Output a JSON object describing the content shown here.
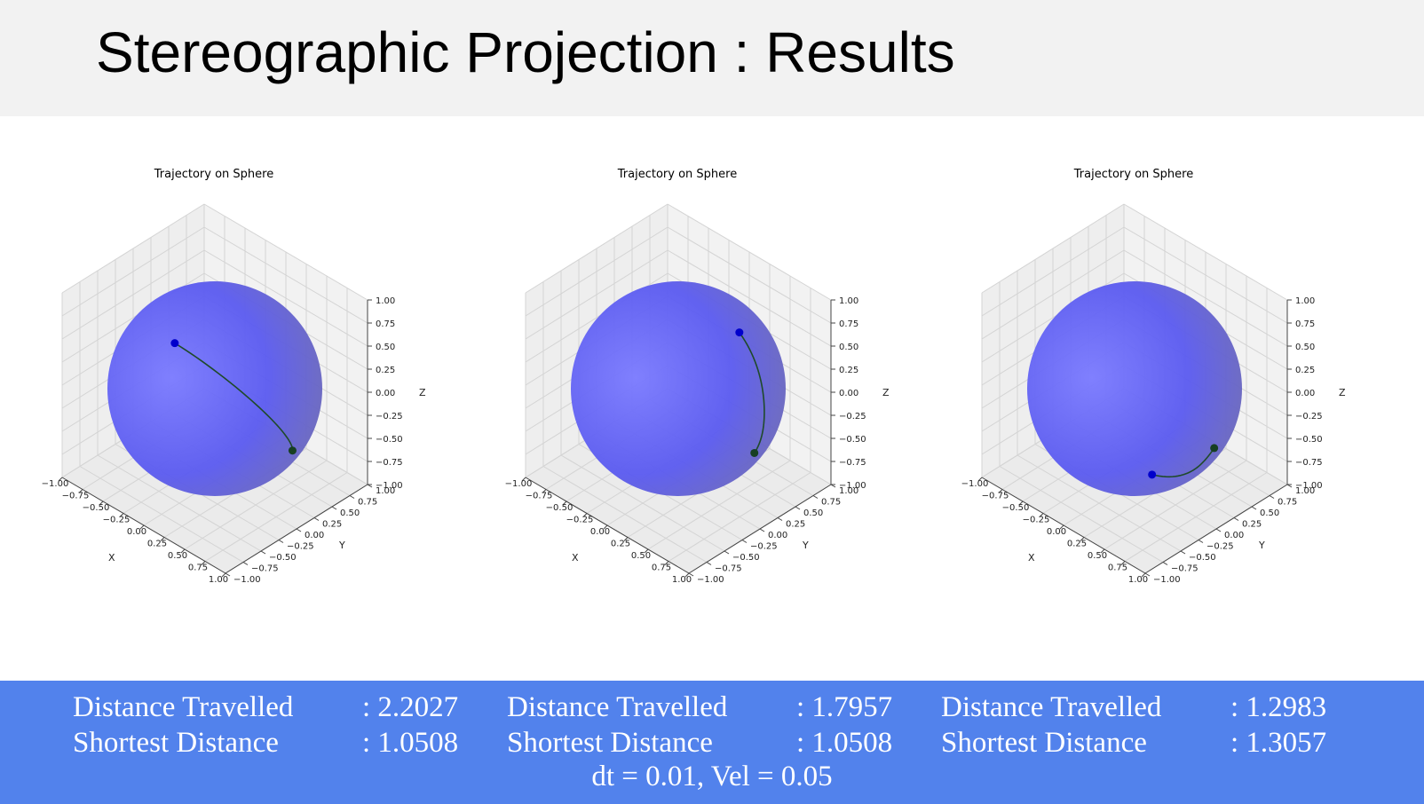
{
  "slide": {
    "title": "Stereographic Projection : Results"
  },
  "chart_data": [
    {
      "type": "scatter",
      "title": "Trajectory on Sphere",
      "xlabel": "X",
      "ylabel": "Y",
      "zlabel": "Z",
      "xlim": [
        -1,
        1
      ],
      "ylim": [
        -1,
        1
      ],
      "zlim": [
        -1,
        1
      ],
      "tick_labels": [
        "−1.00",
        "−0.75",
        "−0.50",
        "−0.25",
        "0.00",
        "0.25",
        "0.50",
        "0.75",
        "1.00"
      ],
      "grid": true,
      "sphere_color": "#5a5af0",
      "path_color": "#1f4a2a",
      "series": [
        {
          "values": [
            [
              -0.05,
              -0.55,
              0.77
            ],
            [
              0.95,
              0.25,
              -0.45
            ]
          ]
        }
      ]
    },
    {
      "type": "scatter",
      "title": "Trajectory on Sphere",
      "xlabel": "X",
      "ylabel": "Y",
      "zlabel": "Z",
      "xlim": [
        -1,
        1
      ],
      "ylim": [
        -1,
        1
      ],
      "zlim": [
        -1,
        1
      ],
      "tick_labels": [
        "−1.00",
        "−0.75",
        "−0.50",
        "−0.25",
        "0.00",
        "0.25",
        "0.50",
        "0.75",
        "1.00"
      ],
      "grid": true,
      "sphere_color": "#5a5af0",
      "path_color": "#1f4a2a",
      "series": [
        {
          "values": [
            [
              0.45,
              0.35,
              0.68
            ],
            [
              0.95,
              0.25,
              -0.5
            ]
          ]
        }
      ]
    },
    {
      "type": "scatter",
      "title": "Trajectory on Sphere",
      "xlabel": "X",
      "ylabel": "Y",
      "zlabel": "Z",
      "xlim": [
        -1,
        1
      ],
      "ylim": [
        -1,
        1
      ],
      "zlim": [
        -1,
        1
      ],
      "tick_labels": [
        "−1.00",
        "−0.75",
        "−0.50",
        "−0.25",
        "0.00",
        "0.25",
        "0.50",
        "0.75",
        "1.00"
      ],
      "grid": true,
      "sphere_color": "#5a5af0",
      "path_color": "#1f4a2a",
      "series": [
        {
          "values": [
            [
              0.2,
              0.05,
              -0.98
            ],
            [
              0.95,
              0.3,
              -0.45
            ]
          ]
        }
      ]
    }
  ],
  "stats": [
    {
      "distance_label": "Distance Travelled",
      "distance_value": ": 2.2027",
      "shortest_label": "Shortest Distance",
      "shortest_value": ": 1.0508"
    },
    {
      "distance_label": "Distance Travelled",
      "distance_value": ": 1.7957",
      "shortest_label": "Shortest Distance",
      "shortest_value": ": 1.0508"
    },
    {
      "distance_label": "Distance Travelled",
      "distance_value": ": 1.2983",
      "shortest_label": "Shortest Distance",
      "shortest_value": ": 1.3057"
    }
  ],
  "footer": "dt = 0.01, Vel = 0.05"
}
